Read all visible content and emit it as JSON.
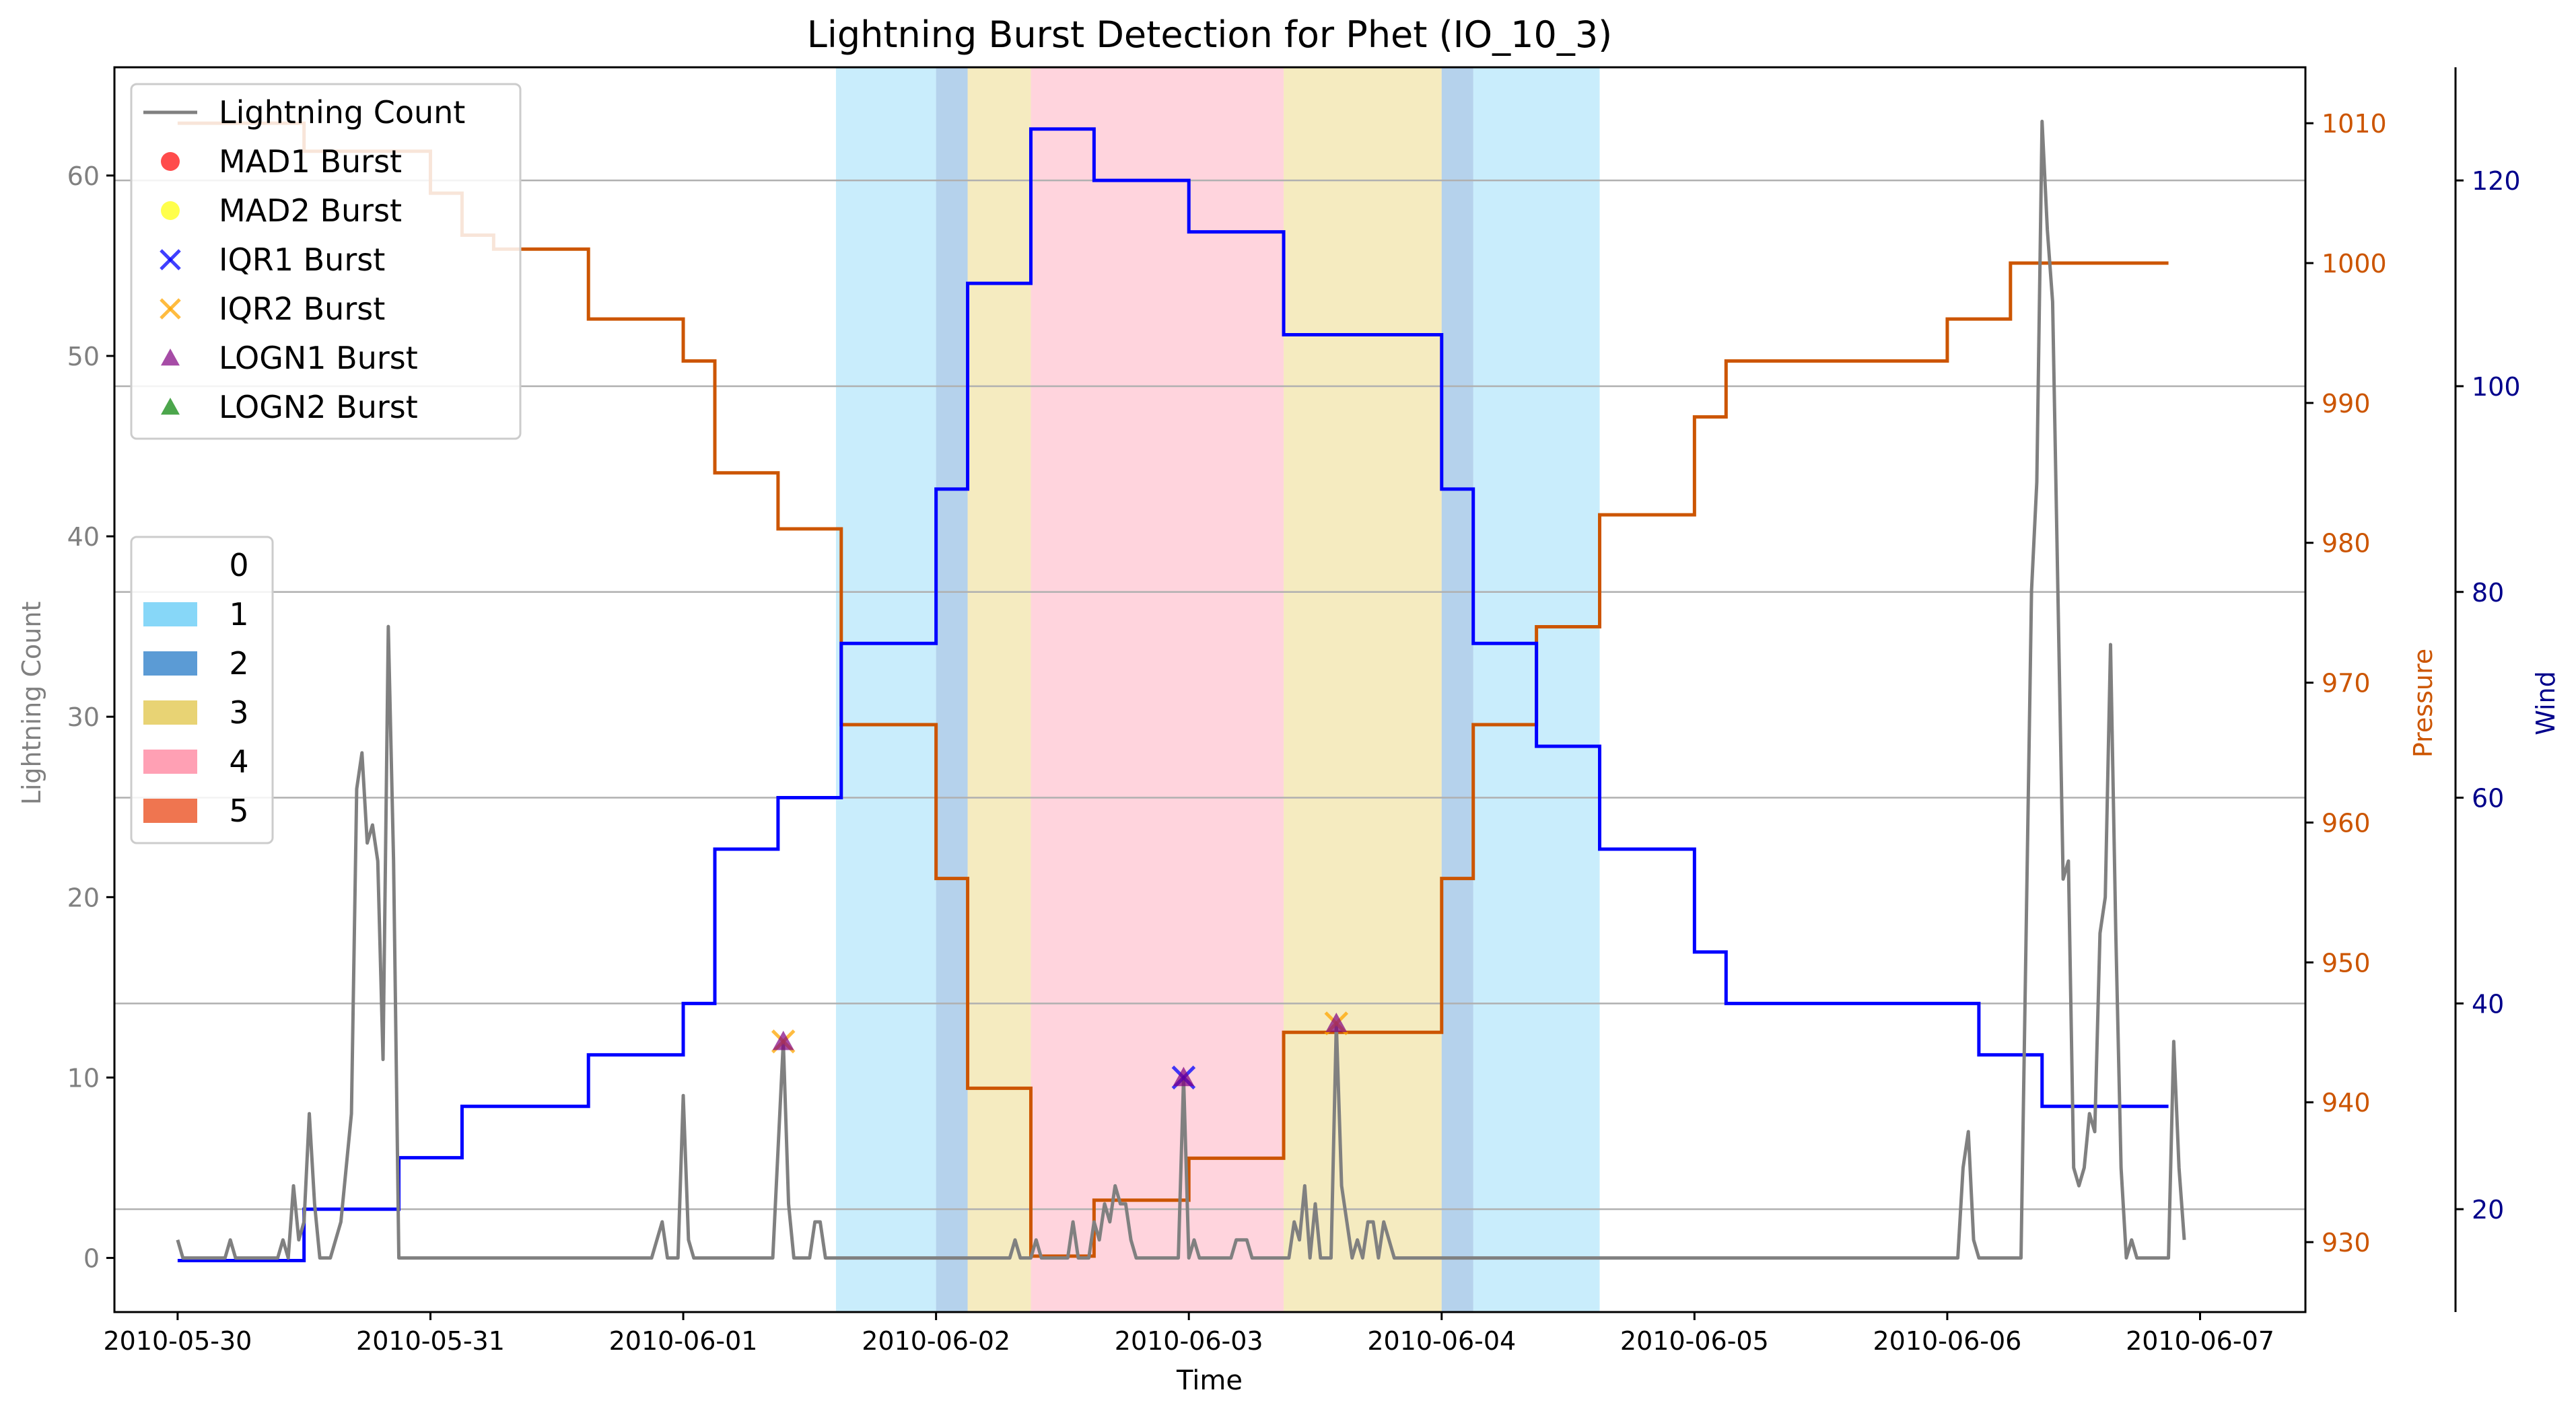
{
  "chart_data": {
    "type": "line",
    "title": "Lightning Burst Detection for Phet (IO_10_3)",
    "xlabel": "Time",
    "axes": {
      "left": {
        "label": "Lightning Count",
        "ylim": [
          -3,
          66
        ],
        "ticks": [
          0,
          10,
          20,
          30,
          40,
          50,
          60
        ],
        "color": "#808080"
      },
      "right_pressure": {
        "label": "Pressure",
        "ylim": [
          925,
          1014
        ],
        "ticks": [
          930,
          940,
          950,
          960,
          970,
          980,
          990,
          1000,
          1010
        ],
        "color": "#cc5500"
      },
      "right_wind": {
        "label": "Wind",
        "ylim": [
          10,
          131
        ],
        "ticks": [
          20,
          40,
          60,
          80,
          100,
          120
        ],
        "color": "#00008b"
      }
    },
    "x_range": [
      "2010-05-29T18:00",
      "2010-06-07T10:00"
    ],
    "x_ticks": [
      "2010-05-30",
      "2010-05-31",
      "2010-06-01",
      "2010-06-02",
      "2010-06-03",
      "2010-06-04",
      "2010-06-05",
      "2010-06-06",
      "2010-06-07"
    ],
    "grid": "horizontal lines at wind ticks",
    "legend_series": [
      {
        "label": "Lightning Count",
        "kind": "line",
        "color": "#808080"
      },
      {
        "label": "MAD1 Burst",
        "kind": "circle",
        "color": "#ff0000"
      },
      {
        "label": "MAD2 Burst",
        "kind": "circle",
        "color": "#ffff00"
      },
      {
        "label": "IQR1 Burst",
        "kind": "x",
        "color": "#0000ff"
      },
      {
        "label": "IQR2 Burst",
        "kind": "x",
        "color": "#ffa500"
      },
      {
        "label": "LOGN1 Burst",
        "kind": "triangle",
        "color": "#800080"
      },
      {
        "label": "LOGN2 Burst",
        "kind": "triangle",
        "color": "#008000"
      }
    ],
    "legend_categories": [
      {
        "label": "0",
        "color": "#ffffff"
      },
      {
        "label": "1",
        "color": "#87d7f8"
      },
      {
        "label": "2",
        "color": "#5b9bd5"
      },
      {
        "label": "3",
        "color": "#e8d374"
      },
      {
        "label": "4",
        "color": "#ffa0b4"
      },
      {
        "label": "5",
        "color": "#ef7550"
      }
    ],
    "category_spans": [
      {
        "start": "2010-06-01T14:30",
        "end": "2010-06-02T00:00",
        "category": "1"
      },
      {
        "start": "2010-06-02T00:00",
        "end": "2010-06-02T03:00",
        "category": "2"
      },
      {
        "start": "2010-06-02T03:00",
        "end": "2010-06-02T09:00",
        "category": "3"
      },
      {
        "start": "2010-06-02T09:00",
        "end": "2010-06-03T09:00",
        "category": "4"
      },
      {
        "start": "2010-06-03T09:00",
        "end": "2010-06-04T00:00",
        "category": "3"
      },
      {
        "start": "2010-06-04T00:00",
        "end": "2010-06-04T03:00",
        "category": "2"
      },
      {
        "start": "2010-06-04T03:00",
        "end": "2010-06-04T15:00",
        "category": "1"
      }
    ],
    "pressure": {
      "name": "Pressure",
      "color": "#cc5500",
      "steps": [
        [
          "2010-05-30T00:00",
          1010
        ],
        [
          "2010-05-30T12:00",
          1008
        ],
        [
          "2010-05-31T00:00",
          1005
        ],
        [
          "2010-05-31T03:00",
          1002
        ],
        [
          "2010-05-31T06:00",
          1001
        ],
        [
          "2010-05-31T15:00",
          996
        ],
        [
          "2010-06-01T00:00",
          993
        ],
        [
          "2010-06-01T03:00",
          985
        ],
        [
          "2010-06-01T09:00",
          981
        ],
        [
          "2010-06-01T15:00",
          967
        ],
        [
          "2010-06-02T00:00",
          956
        ],
        [
          "2010-06-02T03:00",
          941
        ],
        [
          "2010-06-02T09:00",
          929
        ],
        [
          "2010-06-02T15:00",
          933
        ],
        [
          "2010-06-03T00:00",
          936
        ],
        [
          "2010-06-03T09:00",
          945
        ],
        [
          "2010-06-04T00:00",
          956
        ],
        [
          "2010-06-04T03:00",
          967
        ],
        [
          "2010-06-04T09:00",
          974
        ],
        [
          "2010-06-04T15:00",
          982
        ],
        [
          "2010-06-05T00:00",
          989
        ],
        [
          "2010-06-05T03:00",
          993
        ],
        [
          "2010-06-06T00:00",
          996
        ],
        [
          "2010-06-06T06:00",
          1000
        ],
        [
          "2010-06-06T21:00",
          1000
        ]
      ]
    },
    "wind": {
      "name": "Wind",
      "color": "#0000ff",
      "steps": [
        [
          "2010-05-30T00:00",
          15
        ],
        [
          "2010-05-30T12:00",
          20
        ],
        [
          "2010-05-30T21:00",
          25
        ],
        [
          "2010-05-31T03:00",
          30
        ],
        [
          "2010-05-31T15:00",
          35
        ],
        [
          "2010-06-01T00:00",
          40
        ],
        [
          "2010-06-01T03:00",
          55
        ],
        [
          "2010-06-01T09:00",
          60
        ],
        [
          "2010-06-01T15:00",
          75
        ],
        [
          "2010-06-02T00:00",
          90
        ],
        [
          "2010-06-02T03:00",
          110
        ],
        [
          "2010-06-02T09:00",
          125
        ],
        [
          "2010-06-02T15:00",
          120
        ],
        [
          "2010-06-03T00:00",
          115
        ],
        [
          "2010-06-03T09:00",
          105
        ],
        [
          "2010-06-04T00:00",
          90
        ],
        [
          "2010-06-04T03:00",
          75
        ],
        [
          "2010-06-04T09:00",
          65
        ],
        [
          "2010-06-04T15:00",
          55
        ],
        [
          "2010-06-05T00:00",
          45
        ],
        [
          "2010-06-05T03:00",
          40
        ],
        [
          "2010-06-06T03:00",
          35
        ],
        [
          "2010-06-06T09:00",
          30
        ],
        [
          "2010-06-06T21:00",
          30
        ]
      ]
    },
    "lightning_count": {
      "name": "Lightning Count",
      "color": "#808080",
      "points": [
        [
          "2010-05-30T00:00",
          1
        ],
        [
          "2010-05-30T00:30",
          0
        ],
        [
          "2010-05-30T04:30",
          0
        ],
        [
          "2010-05-30T05:00",
          1
        ],
        [
          "2010-05-30T05:30",
          0
        ],
        [
          "2010-05-30T09:30",
          0
        ],
        [
          "2010-05-30T10:00",
          1
        ],
        [
          "2010-05-30T10:30",
          0
        ],
        [
          "2010-05-30T11:00",
          4
        ],
        [
          "2010-05-30T11:30",
          1
        ],
        [
          "2010-05-30T12:00",
          2
        ],
        [
          "2010-05-30T12:30",
          8
        ],
        [
          "2010-05-30T13:00",
          3
        ],
        [
          "2010-05-30T13:30",
          0
        ],
        [
          "2010-05-30T14:30",
          0
        ],
        [
          "2010-05-30T15:30",
          2
        ],
        [
          "2010-05-30T16:30",
          8
        ],
        [
          "2010-05-30T17:00",
          26
        ],
        [
          "2010-05-30T17:30",
          28
        ],
        [
          "2010-05-30T18:00",
          23
        ],
        [
          "2010-05-30T18:30",
          24
        ],
        [
          "2010-05-30T19:00",
          22
        ],
        [
          "2010-05-30T19:30",
          11
        ],
        [
          "2010-05-30T20:00",
          35
        ],
        [
          "2010-05-30T20:30",
          22
        ],
        [
          "2010-05-30T21:00",
          0
        ],
        [
          "2010-05-31T21:00",
          0
        ],
        [
          "2010-05-31T22:00",
          2
        ],
        [
          "2010-05-31T22:30",
          0
        ],
        [
          "2010-05-31T23:30",
          0
        ],
        [
          "2010-06-01T00:00",
          9
        ],
        [
          "2010-06-01T00:30",
          1
        ],
        [
          "2010-06-01T01:00",
          0
        ],
        [
          "2010-06-01T08:30",
          0
        ],
        [
          "2010-06-01T09:30",
          12
        ],
        [
          "2010-06-01T10:00",
          3
        ],
        [
          "2010-06-01T10:30",
          0
        ],
        [
          "2010-06-01T12:00",
          0
        ],
        [
          "2010-06-01T12:30",
          2
        ],
        [
          "2010-06-01T13:00",
          2
        ],
        [
          "2010-06-01T13:30",
          0
        ],
        [
          "2010-06-02T07:00",
          0
        ],
        [
          "2010-06-02T07:30",
          1
        ],
        [
          "2010-06-02T08:00",
          0
        ],
        [
          "2010-06-02T09:00",
          0
        ],
        [
          "2010-06-02T09:30",
          1
        ],
        [
          "2010-06-02T10:00",
          0
        ],
        [
          "2010-06-02T12:30",
          0
        ],
        [
          "2010-06-02T13:00",
          2
        ],
        [
          "2010-06-02T13:30",
          0
        ],
        [
          "2010-06-02T14:30",
          0
        ],
        [
          "2010-06-02T15:00",
          2
        ],
        [
          "2010-06-02T15:30",
          1
        ],
        [
          "2010-06-02T16:00",
          3
        ],
        [
          "2010-06-02T16:30",
          2
        ],
        [
          "2010-06-02T17:00",
          4
        ],
        [
          "2010-06-02T17:30",
          3
        ],
        [
          "2010-06-02T18:00",
          3
        ],
        [
          "2010-06-02T18:30",
          1
        ],
        [
          "2010-06-02T19:00",
          0
        ],
        [
          "2010-06-02T23:00",
          0
        ],
        [
          "2010-06-02T23:30",
          10
        ],
        [
          "2010-06-03T00:00",
          0
        ],
        [
          "2010-06-03T00:30",
          1
        ],
        [
          "2010-06-03T01:00",
          0
        ],
        [
          "2010-06-03T04:00",
          0
        ],
        [
          "2010-06-03T04:30",
          1
        ],
        [
          "2010-06-03T05:30",
          1
        ],
        [
          "2010-06-03T06:00",
          0
        ],
        [
          "2010-06-03T09:30",
          0
        ],
        [
          "2010-06-03T10:00",
          2
        ],
        [
          "2010-06-03T10:30",
          1
        ],
        [
          "2010-06-03T11:00",
          4
        ],
        [
          "2010-06-03T11:30",
          0
        ],
        [
          "2010-06-03T12:00",
          3
        ],
        [
          "2010-06-03T12:30",
          0
        ],
        [
          "2010-06-03T13:30",
          0
        ],
        [
          "2010-06-03T14:00",
          13
        ],
        [
          "2010-06-03T14:30",
          4
        ],
        [
          "2010-06-03T15:00",
          2
        ],
        [
          "2010-06-03T15:30",
          0
        ],
        [
          "2010-06-03T16:00",
          1
        ],
        [
          "2010-06-03T16:30",
          0
        ],
        [
          "2010-06-03T17:00",
          2
        ],
        [
          "2010-06-03T17:30",
          2
        ],
        [
          "2010-06-03T18:00",
          0
        ],
        [
          "2010-06-03T18:30",
          2
        ],
        [
          "2010-06-03T19:00",
          1
        ],
        [
          "2010-06-03T19:30",
          0
        ],
        [
          "2010-06-06T01:00",
          0
        ],
        [
          "2010-06-06T01:30",
          5
        ],
        [
          "2010-06-06T02:00",
          7
        ],
        [
          "2010-06-06T02:30",
          1
        ],
        [
          "2010-06-06T03:00",
          0
        ],
        [
          "2010-06-06T07:00",
          0
        ],
        [
          "2010-06-06T08:00",
          37
        ],
        [
          "2010-06-06T08:30",
          43
        ],
        [
          "2010-06-06T09:00",
          63
        ],
        [
          "2010-06-06T09:30",
          57
        ],
        [
          "2010-06-06T10:00",
          53
        ],
        [
          "2010-06-06T11:00",
          21
        ],
        [
          "2010-06-06T11:30",
          22
        ],
        [
          "2010-06-06T12:00",
          5
        ],
        [
          "2010-06-06T12:30",
          4
        ],
        [
          "2010-06-06T13:00",
          5
        ],
        [
          "2010-06-06T13:30",
          8
        ],
        [
          "2010-06-06T14:00",
          7
        ],
        [
          "2010-06-06T14:30",
          18
        ],
        [
          "2010-06-06T15:00",
          20
        ],
        [
          "2010-06-06T15:30",
          34
        ],
        [
          "2010-06-06T16:00",
          18
        ],
        [
          "2010-06-06T16:30",
          5
        ],
        [
          "2010-06-06T17:00",
          0
        ],
        [
          "2010-06-06T17:30",
          1
        ],
        [
          "2010-06-06T18:00",
          0
        ],
        [
          "2010-06-06T21:00",
          0
        ],
        [
          "2010-06-06T21:30",
          12
        ],
        [
          "2010-06-06T22:00",
          5
        ],
        [
          "2010-06-06T22:30",
          1
        ]
      ]
    },
    "bursts": [
      {
        "time": "2010-06-01T09:30",
        "value": 12,
        "markers": [
          "IQR2 Burst",
          "LOGN1 Burst"
        ]
      },
      {
        "time": "2010-06-02T23:30",
        "value": 10,
        "markers": [
          "IQR1 Burst",
          "LOGN1 Burst"
        ]
      },
      {
        "time": "2010-06-03T14:00",
        "value": 13,
        "markers": [
          "IQR2 Burst",
          "LOGN1 Burst"
        ]
      }
    ]
  }
}
